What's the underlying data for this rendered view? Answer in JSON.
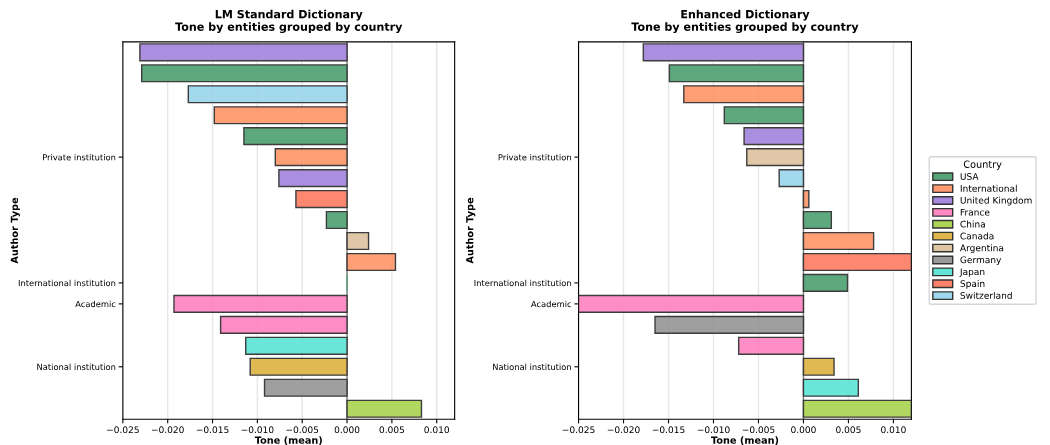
{
  "chart_data": [
    {
      "type": "bar",
      "orientation": "horizontal",
      "title": "LM Standard Dictionary",
      "subtitle": "Tone by entities grouped by country",
      "xlabel": "Tone (mean)",
      "ylabel": "Author Type",
      "categories": [
        null,
        null,
        null,
        null,
        null,
        "Private institution",
        null,
        null,
        null,
        null,
        null,
        "International institution",
        "Academic",
        null,
        null,
        "National institution",
        null,
        null
      ],
      "series": [
        {
          "color": "#56a477",
          "values": [
            null,
            -0.0229,
            null,
            null,
            -0.0115,
            null,
            null,
            null,
            -0.0023,
            null,
            null,
            0.0,
            null,
            null,
            null,
            null,
            null,
            null
          ]
        },
        {
          "color": "#fe9a6f",
          "values": [
            null,
            null,
            null,
            -0.0148,
            null,
            -0.008,
            null,
            null,
            null,
            null,
            0.0054,
            null,
            null,
            null,
            null,
            null,
            null,
            null
          ]
        },
        {
          "color": "#a68ae0",
          "values": [
            -0.0231,
            null,
            null,
            null,
            null,
            null,
            -0.0076,
            null,
            null,
            null,
            null,
            null,
            null,
            null,
            null,
            null,
            null,
            null
          ]
        },
        {
          "color": "#fe88c2",
          "values": [
            null,
            null,
            null,
            null,
            null,
            null,
            null,
            null,
            null,
            null,
            null,
            null,
            -0.0193,
            -0.0141,
            null,
            null,
            null,
            null
          ]
        },
        {
          "color": "#add558",
          "values": [
            null,
            null,
            null,
            null,
            null,
            null,
            null,
            null,
            null,
            null,
            null,
            null,
            null,
            null,
            null,
            null,
            null,
            0.0083
          ]
        },
        {
          "color": "#e0b64a",
          "values": [
            null,
            null,
            null,
            null,
            null,
            null,
            null,
            null,
            null,
            null,
            null,
            null,
            null,
            null,
            null,
            -0.0108,
            null,
            null
          ]
        },
        {
          "color": "#dec5a4",
          "values": [
            null,
            null,
            null,
            null,
            null,
            null,
            null,
            null,
            null,
            0.0024,
            null,
            null,
            null,
            null,
            null,
            null,
            null,
            null
          ]
        },
        {
          "color": "#9a9a9a",
          "values": [
            null,
            null,
            null,
            null,
            null,
            null,
            null,
            null,
            null,
            null,
            null,
            null,
            null,
            null,
            null,
            null,
            -0.0092,
            null
          ]
        },
        {
          "color": "#63e6d8",
          "values": [
            null,
            null,
            null,
            null,
            null,
            null,
            null,
            null,
            null,
            null,
            null,
            null,
            null,
            null,
            -0.0113,
            null,
            null,
            null
          ]
        },
        {
          "color": "#fe8169",
          "values": [
            null,
            null,
            null,
            null,
            null,
            null,
            null,
            -0.0057,
            null,
            null,
            null,
            null,
            null,
            null,
            null,
            null,
            null,
            null
          ]
        },
        {
          "color": "#9fd7ec",
          "values": [
            null,
            null,
            -0.0177,
            null,
            null,
            null,
            null,
            null,
            null,
            null,
            null,
            null,
            null,
            null,
            null,
            null,
            null,
            null
          ]
        }
      ],
      "xlim": [
        -0.025,
        0.012
      ],
      "xticks": [
        {
          "value": -0.025,
          "label": "−0.025"
        },
        {
          "value": -0.02,
          "label": "−0.020"
        },
        {
          "value": -0.015,
          "label": "−0.015"
        },
        {
          "value": -0.01,
          "label": "−0.010"
        },
        {
          "value": -0.005,
          "label": "−0.005"
        },
        {
          "value": 0,
          "label": "0.000"
        },
        {
          "value": 0.005,
          "label": "0.005"
        },
        {
          "value": 0.01,
          "label": "0.010"
        }
      ],
      "ref_lines": [
        {
          "axis": "x",
          "value": 0,
          "color": "#808080"
        }
      ],
      "grid": "x"
    },
    {
      "type": "bar",
      "orientation": "horizontal",
      "title": "Enhanced Dictionary",
      "subtitle": "Tone by entities grouped by country",
      "xlabel": "Tone (mean)",
      "ylabel": "Author Type",
      "legend_title": "Country",
      "legend": "right",
      "categories": [
        null,
        null,
        null,
        null,
        null,
        "Private institution",
        null,
        null,
        null,
        null,
        null,
        "International institution",
        "Academic",
        null,
        null,
        "National institution",
        null,
        null
      ],
      "series": [
        {
          "name": "USA",
          "color": "#56a477",
          "values": [
            null,
            -0.0149,
            null,
            -0.0088,
            null,
            null,
            null,
            null,
            0.0031,
            null,
            null,
            0.0049,
            null,
            null,
            null,
            null,
            null,
            null
          ]
        },
        {
          "name": "International",
          "color": "#fe9a6f",
          "values": [
            null,
            null,
            -0.0133,
            null,
            null,
            null,
            null,
            0.0006,
            null,
            0.0078,
            null,
            null,
            null,
            null,
            null,
            null,
            null,
            null
          ]
        },
        {
          "name": "United Kingdom",
          "color": "#a68ae0",
          "values": [
            -0.0178,
            null,
            null,
            null,
            -0.0066,
            null,
            null,
            null,
            null,
            null,
            null,
            null,
            null,
            null,
            null,
            null,
            null,
            null
          ]
        },
        {
          "name": "France",
          "color": "#fe88c2",
          "values": [
            null,
            null,
            null,
            null,
            null,
            null,
            null,
            null,
            null,
            null,
            null,
            null,
            -0.025,
            null,
            -0.0072,
            null,
            null,
            null
          ]
        },
        {
          "name": "China",
          "color": "#add558",
          "values": [
            null,
            null,
            null,
            null,
            null,
            null,
            null,
            null,
            null,
            null,
            null,
            null,
            null,
            null,
            null,
            null,
            null,
            0.012
          ]
        },
        {
          "name": "Canada",
          "color": "#e0b64a",
          "values": [
            null,
            null,
            null,
            null,
            null,
            null,
            null,
            null,
            null,
            null,
            null,
            null,
            null,
            null,
            null,
            0.0034,
            null,
            null
          ]
        },
        {
          "name": "Argentina",
          "color": "#dec5a4",
          "values": [
            null,
            null,
            null,
            null,
            null,
            -0.0063,
            null,
            null,
            null,
            null,
            null,
            null,
            null,
            null,
            null,
            null,
            null,
            null
          ]
        },
        {
          "name": "Germany",
          "color": "#9a9a9a",
          "values": [
            null,
            null,
            null,
            null,
            null,
            null,
            null,
            null,
            null,
            null,
            null,
            null,
            null,
            -0.0165,
            null,
            null,
            null,
            null
          ]
        },
        {
          "name": "Japan",
          "color": "#63e6d8",
          "values": [
            null,
            null,
            null,
            null,
            null,
            null,
            null,
            null,
            null,
            null,
            null,
            null,
            null,
            null,
            null,
            null,
            0.0061,
            null
          ]
        },
        {
          "name": "Spain",
          "color": "#fe8169",
          "values": [
            null,
            null,
            null,
            null,
            null,
            null,
            null,
            null,
            null,
            null,
            0.012,
            null,
            null,
            null,
            null,
            null,
            null,
            null
          ]
        },
        {
          "name": "Switzerland",
          "color": "#9fd7ec",
          "values": [
            null,
            null,
            null,
            null,
            null,
            null,
            -0.0027,
            null,
            null,
            null,
            null,
            null,
            null,
            null,
            null,
            null,
            null,
            null
          ]
        }
      ],
      "xlim": [
        -0.025,
        0.012
      ],
      "xticks": [
        {
          "value": -0.025,
          "label": "−0.025"
        },
        {
          "value": -0.02,
          "label": "−0.020"
        },
        {
          "value": -0.015,
          "label": "−0.015"
        },
        {
          "value": -0.01,
          "label": "−0.010"
        },
        {
          "value": -0.005,
          "label": "−0.005"
        },
        {
          "value": 0,
          "label": "0.000"
        },
        {
          "value": 0.005,
          "label": "0.005"
        },
        {
          "value": 0.01,
          "label": "0.010"
        }
      ],
      "ref_lines": [
        {
          "axis": "x",
          "value": 0,
          "color": "#808080"
        }
      ],
      "grid": "x"
    }
  ]
}
